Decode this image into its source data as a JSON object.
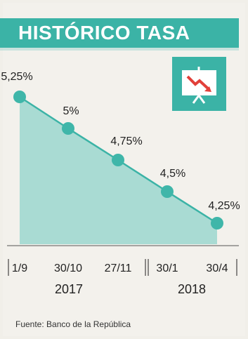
{
  "header": {
    "title": "HISTÓRICO TASA"
  },
  "icon": {
    "name": "presentation-chart-down-icon",
    "accent": "#3bb3a6",
    "arrow": "#e2403a"
  },
  "colors": {
    "teal": "#3bb3a6",
    "area": "#a9dbd3",
    "marker": "#3fb6a9"
  },
  "chart_data": {
    "type": "area",
    "x": [
      "1/9",
      "30/10",
      "27/11",
      "30/1",
      "30/4"
    ],
    "values": [
      5.25,
      5,
      4.75,
      4.5,
      4.25
    ],
    "data_labels": [
      "5,25%",
      "5%",
      "4,75%",
      "4,5%",
      "4,25%"
    ],
    "year_groups": [
      {
        "label": "2017",
        "categories": [
          "1/9",
          "30/10",
          "27/11"
        ]
      },
      {
        "label": "2018",
        "categories": [
          "30/1",
          "30/4"
        ]
      }
    ],
    "title": "HISTÓRICO TASA",
    "xlabel": "",
    "ylabel": "",
    "ylim": [
      4.0,
      5.5
    ],
    "grid": false,
    "legend": "none"
  },
  "footer": {
    "source": "Fuente: Banco de la República"
  }
}
